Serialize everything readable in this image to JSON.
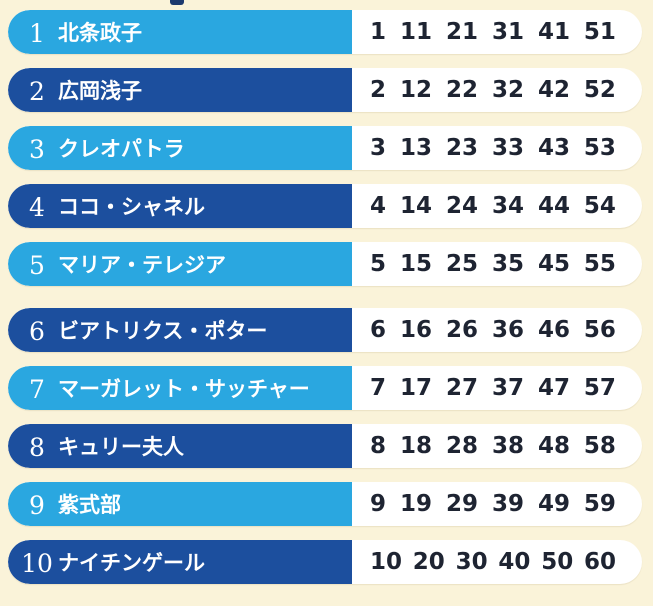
{
  "page": {
    "description": "Table mapping numbered historical women's names to six lottery-style numbers each"
  },
  "colors": {
    "background": "#faf3d9",
    "light_blue": "#2aa7e0",
    "dark_blue": "#1c4f9e",
    "row_white": "#ffffff",
    "number_text": "#1e2432",
    "name_text": "#ffffff"
  },
  "table": {
    "rows": [
      {
        "rank": "1",
        "name": "北条政子",
        "numbers": [
          "1",
          "11",
          "21",
          "31",
          "41",
          "51"
        ],
        "tone": "light",
        "group_gap": false
      },
      {
        "rank": "2",
        "name": "広岡浅子",
        "numbers": [
          "2",
          "12",
          "22",
          "32",
          "42",
          "52"
        ],
        "tone": "dark",
        "group_gap": false
      },
      {
        "rank": "3",
        "name": "クレオパトラ",
        "numbers": [
          "3",
          "13",
          "23",
          "33",
          "43",
          "53"
        ],
        "tone": "light",
        "group_gap": false
      },
      {
        "rank": "4",
        "name": "ココ・シャネル",
        "numbers": [
          "4",
          "14",
          "24",
          "34",
          "44",
          "54"
        ],
        "tone": "dark",
        "group_gap": false
      },
      {
        "rank": "5",
        "name": "マリア・テレジア",
        "numbers": [
          "5",
          "15",
          "25",
          "35",
          "45",
          "55"
        ],
        "tone": "light",
        "group_gap": false
      },
      {
        "rank": "6",
        "name": "ビアトリクス・ポター",
        "numbers": [
          "6",
          "16",
          "26",
          "36",
          "46",
          "56"
        ],
        "tone": "dark",
        "group_gap": true
      },
      {
        "rank": "7",
        "name": "マーガレット・サッチャー",
        "numbers": [
          "7",
          "17",
          "27",
          "37",
          "47",
          "57"
        ],
        "tone": "light",
        "group_gap": false
      },
      {
        "rank": "8",
        "name": "キュリー夫人",
        "numbers": [
          "8",
          "18",
          "28",
          "38",
          "48",
          "58"
        ],
        "tone": "dark",
        "group_gap": false
      },
      {
        "rank": "9",
        "name": "紫式部",
        "numbers": [
          "9",
          "19",
          "29",
          "39",
          "49",
          "59"
        ],
        "tone": "light",
        "group_gap": false
      },
      {
        "rank": "10",
        "name": "ナイチンゲール",
        "numbers": [
          "10",
          "20",
          "30",
          "40",
          "50",
          "60"
        ],
        "tone": "dark",
        "group_gap": false
      }
    ]
  }
}
